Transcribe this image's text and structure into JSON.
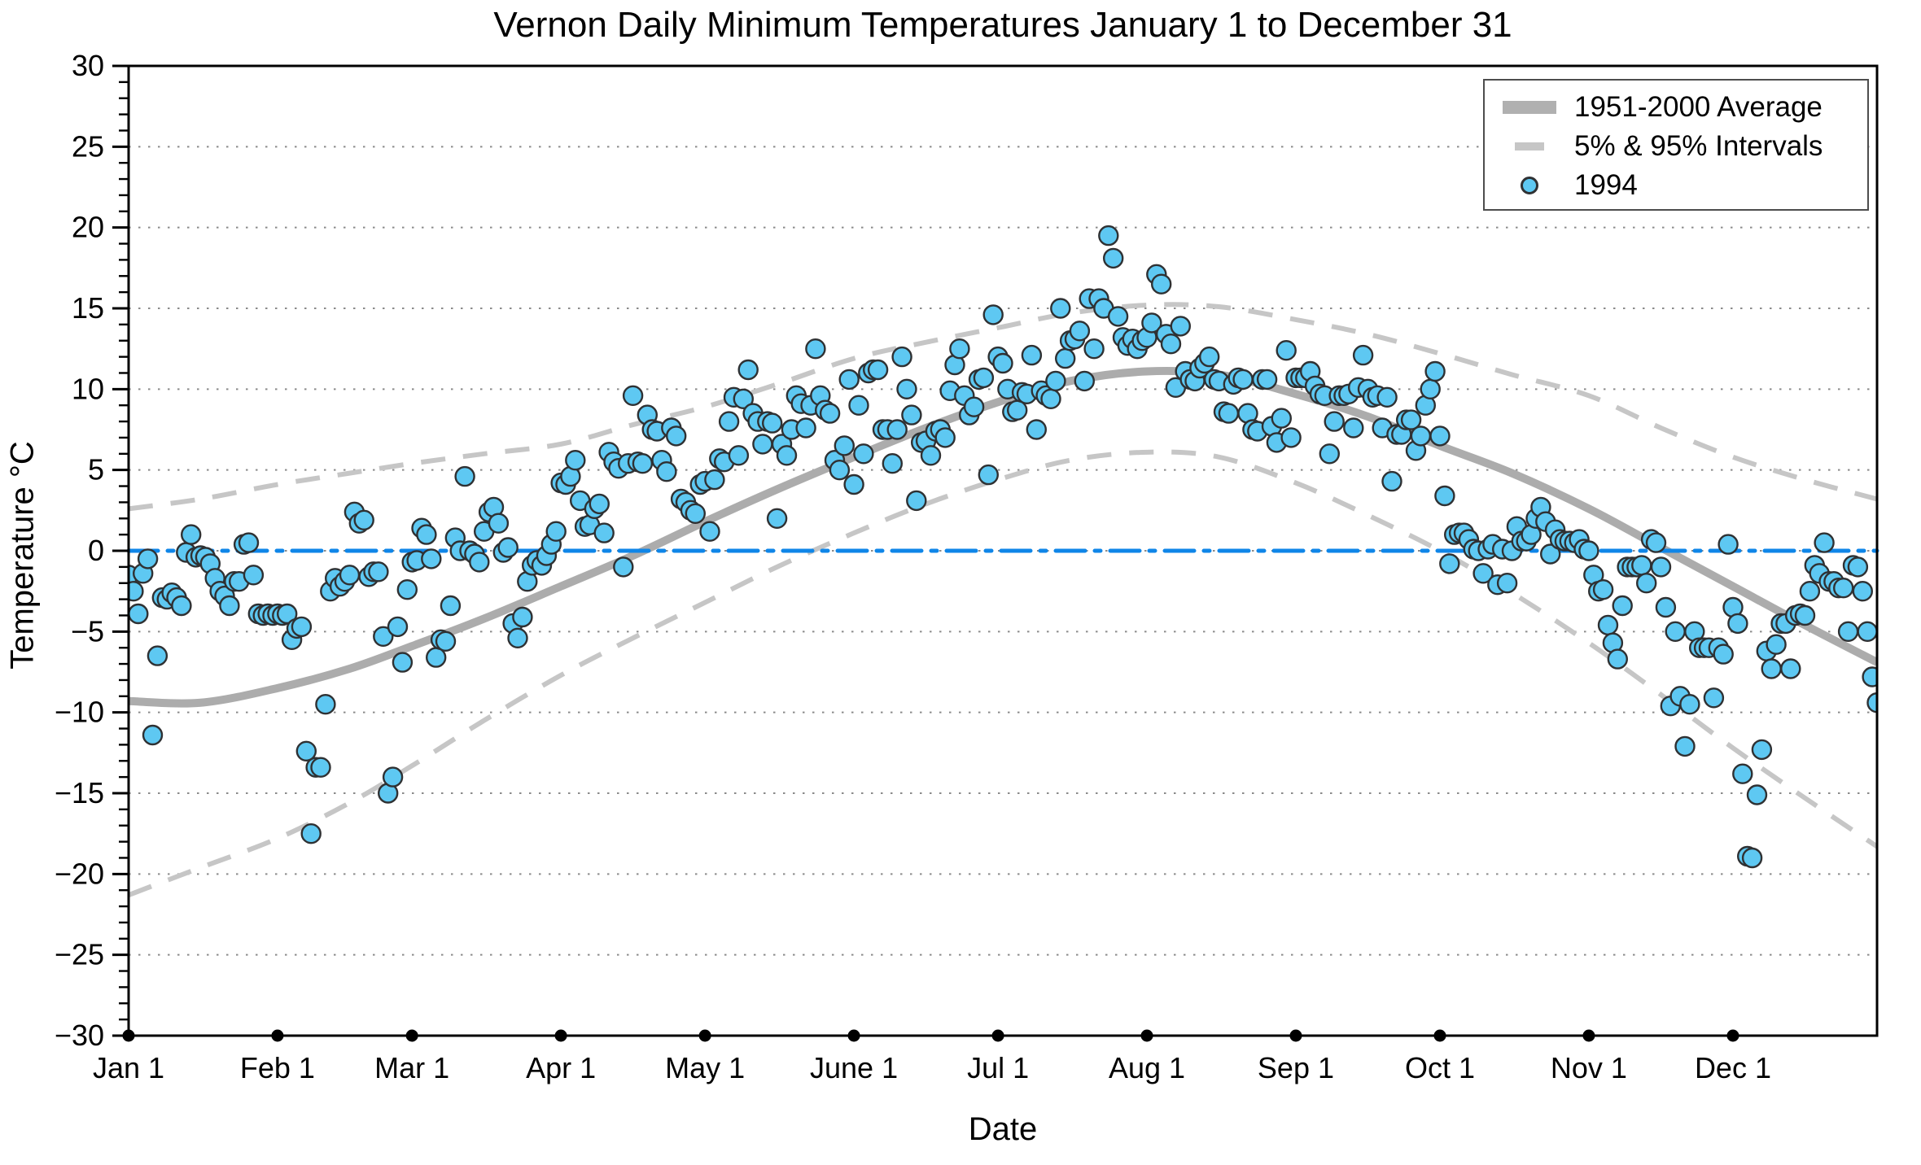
{
  "title": "Vernon Daily Minimum Temperatures January 1 to December 31",
  "colors": {
    "background": "#ffffff",
    "scatter_fill": "#5ec8f2",
    "scatter_edge": "#2f3133",
    "average_line": "#acacac",
    "interval_line": "#c6c6c6",
    "zero_line": "#0f86e8",
    "gridline": "#8a8a8a",
    "axis": "#000000",
    "legend_border": "#4d4d4d"
  },
  "legend": {
    "items": [
      {
        "label": "1951-2000 Average",
        "swatch": "thick-gray-line"
      },
      {
        "label": "5% & 95% Intervals",
        "swatch": "gray-dash"
      },
      {
        "label": "1994",
        "swatch": "blue-circle-marker"
      }
    ]
  },
  "chart_data": {
    "type": "scatter",
    "title": "Vernon Daily Minimum Temperatures January 1 to December 31",
    "xlabel": "Date",
    "ylabel": "Temperature °C",
    "ylim": [
      -30,
      30
    ],
    "y_major_ticks": [
      30,
      25,
      20,
      15,
      10,
      5,
      0,
      -5,
      -10,
      -15,
      -20,
      -25,
      -30
    ],
    "y_minor_step": 1,
    "grid": "horizontal-dotted-every-5",
    "zero_reference_line": 0,
    "legend_position": "upper-right",
    "x_month_labels": [
      "Jan 1",
      "Feb 1",
      "Mar 1",
      "Apr 1",
      "May 1",
      "June 1",
      "Jul 1",
      "Aug 1",
      "Sep 1",
      "Oct 1",
      "Nov 1",
      "Dec 1"
    ],
    "x_month_start_days": [
      0,
      31,
      59,
      90,
      120,
      151,
      181,
      212,
      243,
      273,
      304,
      334
    ],
    "days_in_year": 365,
    "curve_sample_days": [
      0,
      15,
      31,
      46,
      59,
      74,
      90,
      105,
      120,
      135,
      151,
      166,
      181,
      196,
      212,
      227,
      243,
      258,
      273,
      288,
      304,
      319,
      334,
      349,
      364
    ],
    "series": [
      {
        "name": "1951-2000 Average",
        "style": "thick-solid-gray",
        "values": [
          -9.3,
          -9.4,
          -8.5,
          -7.3,
          -5.9,
          -4.2,
          -2.2,
          -0.3,
          1.8,
          3.8,
          5.8,
          7.6,
          9.2,
          10.5,
          11.1,
          10.9,
          9.7,
          8.3,
          6.5,
          4.8,
          2.6,
          0.2,
          -2.2,
          -4.6,
          -6.9
        ]
      },
      {
        "name": "95% Interval",
        "style": "dashed-gray",
        "values": [
          2.6,
          3.2,
          4.1,
          4.8,
          5.4,
          6.0,
          6.6,
          7.8,
          8.9,
          10.3,
          11.9,
          12.9,
          13.8,
          14.7,
          15.2,
          15.1,
          14.3,
          13.4,
          12.2,
          10.9,
          9.6,
          7.6,
          5.8,
          4.4,
          3.2
        ]
      },
      {
        "name": "5% Interval",
        "style": "dashed-gray",
        "values": [
          -21.3,
          -19.6,
          -17.8,
          -15.6,
          -13.3,
          -10.5,
          -7.7,
          -5.4,
          -3.2,
          -1.0,
          1.1,
          2.9,
          4.4,
          5.6,
          6.1,
          5.8,
          4.2,
          2.2,
          0.0,
          -2.6,
          -5.7,
          -8.9,
          -12.2,
          -15.3,
          -18.3
        ]
      }
    ],
    "scatter_series": {
      "name": "1994",
      "marker": "circle",
      "day_of_year_start": 1,
      "values": [
        -1.5,
        -2.5,
        -3.9,
        -1.4,
        -0.5,
        -11.4,
        -6.5,
        -2.9,
        -3.0,
        -2.6,
        -2.9,
        -3.4,
        -0.1,
        1.0,
        -0.4,
        -0.3,
        -0.4,
        -0.8,
        -1.7,
        -2.5,
        -2.8,
        -3.4,
        -1.9,
        -1.9,
        0.4,
        0.5,
        -1.5,
        -3.9,
        -4.0,
        -3.9,
        -4.0,
        -3.9,
        -4.0,
        -3.9,
        -5.5,
        -4.8,
        -4.7,
        -12.4,
        -17.5,
        -13.4,
        -13.4,
        -9.5,
        -2.5,
        -1.7,
        -2.2,
        -1.9,
        -1.5,
        2.4,
        1.7,
        1.9,
        -1.6,
        -1.3,
        -1.3,
        -5.3,
        -15.0,
        -14.0,
        -4.7,
        -6.9,
        -2.4,
        -0.7,
        -0.6,
        1.4,
        1.0,
        -0.5,
        -6.6,
        -5.5,
        -5.6,
        -3.4,
        0.8,
        0.0,
        4.6,
        0.0,
        -0.2,
        -0.7,
        1.2,
        2.4,
        2.7,
        1.7,
        -0.1,
        0.2,
        -4.5,
        -5.4,
        -4.1,
        -1.9,
        -0.9,
        -0.6,
        -0.9,
        -0.3,
        0.4,
        1.2,
        4.2,
        4.1,
        4.6,
        5.6,
        3.1,
        1.5,
        1.6,
        2.6,
        2.9,
        1.1,
        6.1,
        5.5,
        5.1,
        -1.0,
        5.4,
        9.6,
        5.5,
        5.4,
        8.4,
        7.5,
        7.4,
        5.6,
        4.9,
        7.6,
        7.1,
        3.2,
        3.0,
        2.5,
        2.3,
        4.1,
        4.3,
        1.2,
        4.4,
        5.7,
        5.5,
        8.0,
        9.5,
        5.9,
        9.4,
        11.2,
        8.5,
        8.0,
        6.6,
        8.0,
        7.9,
        2.0,
        6.6,
        5.9,
        7.5,
        9.6,
        9.1,
        7.6,
        9.0,
        12.5,
        9.6,
        8.7,
        8.5,
        5.6,
        5.0,
        6.5,
        10.6,
        4.1,
        9.0,
        6.0,
        11.0,
        11.2,
        11.2,
        7.5,
        7.5,
        5.4,
        7.5,
        12.0,
        10.0,
        8.4,
        3.1,
        6.7,
        6.8,
        5.9,
        7.4,
        7.5,
        7.0,
        9.9,
        11.5,
        12.5,
        9.6,
        8.4,
        8.9,
        10.6,
        10.7,
        4.7,
        14.6,
        12.0,
        11.6,
        10.0,
        8.6,
        8.7,
        9.8,
        9.7,
        12.1,
        7.5,
        9.9,
        9.6,
        9.4,
        10.5,
        15.0,
        11.9,
        13.0,
        13.1,
        13.6,
        10.5,
        15.6,
        12.5,
        15.6,
        15.0,
        19.5,
        18.1,
        14.5,
        13.2,
        12.7,
        13.1,
        12.5,
        13.0,
        13.2,
        14.1,
        17.1,
        16.5,
        13.4,
        12.8,
        10.1,
        13.9,
        11.1,
        10.6,
        10.5,
        11.3,
        11.6,
        12.0,
        10.6,
        10.5,
        8.6,
        8.5,
        10.3,
        10.7,
        10.6,
        8.5,
        7.5,
        7.4,
        10.6,
        10.6,
        7.7,
        6.7,
        8.2,
        12.4,
        7.0,
        10.7,
        10.7,
        10.7,
        11.1,
        10.2,
        9.7,
        9.6,
        6.0,
        8.0,
        9.6,
        9.6,
        9.7,
        7.6,
        10.1,
        12.1,
        10.0,
        9.5,
        9.6,
        7.6,
        9.5,
        4.3,
        7.2,
        7.2,
        8.1,
        8.1,
        6.2,
        7.1,
        9.0,
        10.0,
        11.1,
        7.1,
        3.4,
        -0.8,
        1.0,
        1.1,
        1.1,
        0.7,
        0.1,
        0.0,
        -1.4,
        0.1,
        0.4,
        -2.1,
        0.1,
        -2.0,
        0.0,
        1.5,
        0.6,
        0.6,
        1.0,
        2.0,
        2.7,
        1.8,
        -0.2,
        1.3,
        0.7,
        0.6,
        0.6,
        0.5,
        0.7,
        0.1,
        0.0,
        -1.5,
        -2.5,
        -2.4,
        -4.6,
        -5.7,
        -6.7,
        -3.4,
        -1.0,
        -1.0,
        -1.0,
        -0.9,
        -2.0,
        0.7,
        0.5,
        -1.0,
        -3.5,
        -9.6,
        -5.0,
        -9.0,
        -12.1,
        -9.5,
        -5.0,
        -6.0,
        -6.0,
        -6.0,
        -9.1,
        -6.0,
        -6.4,
        0.4,
        -3.5,
        -4.5,
        -13.8,
        -18.9,
        -19.0,
        -15.1,
        -12.3,
        -6.2,
        -7.3,
        -5.8,
        -4.5,
        -4.5,
        -7.3,
        -4.0,
        -3.9,
        -4.0,
        -2.5,
        -0.9,
        -1.4,
        0.5,
        -1.9,
        -1.9,
        -2.3,
        -2.3,
        -5.0,
        -0.9,
        -1.0,
        -2.5,
        -5.0,
        -7.8,
        -9.4
      ]
    }
  }
}
